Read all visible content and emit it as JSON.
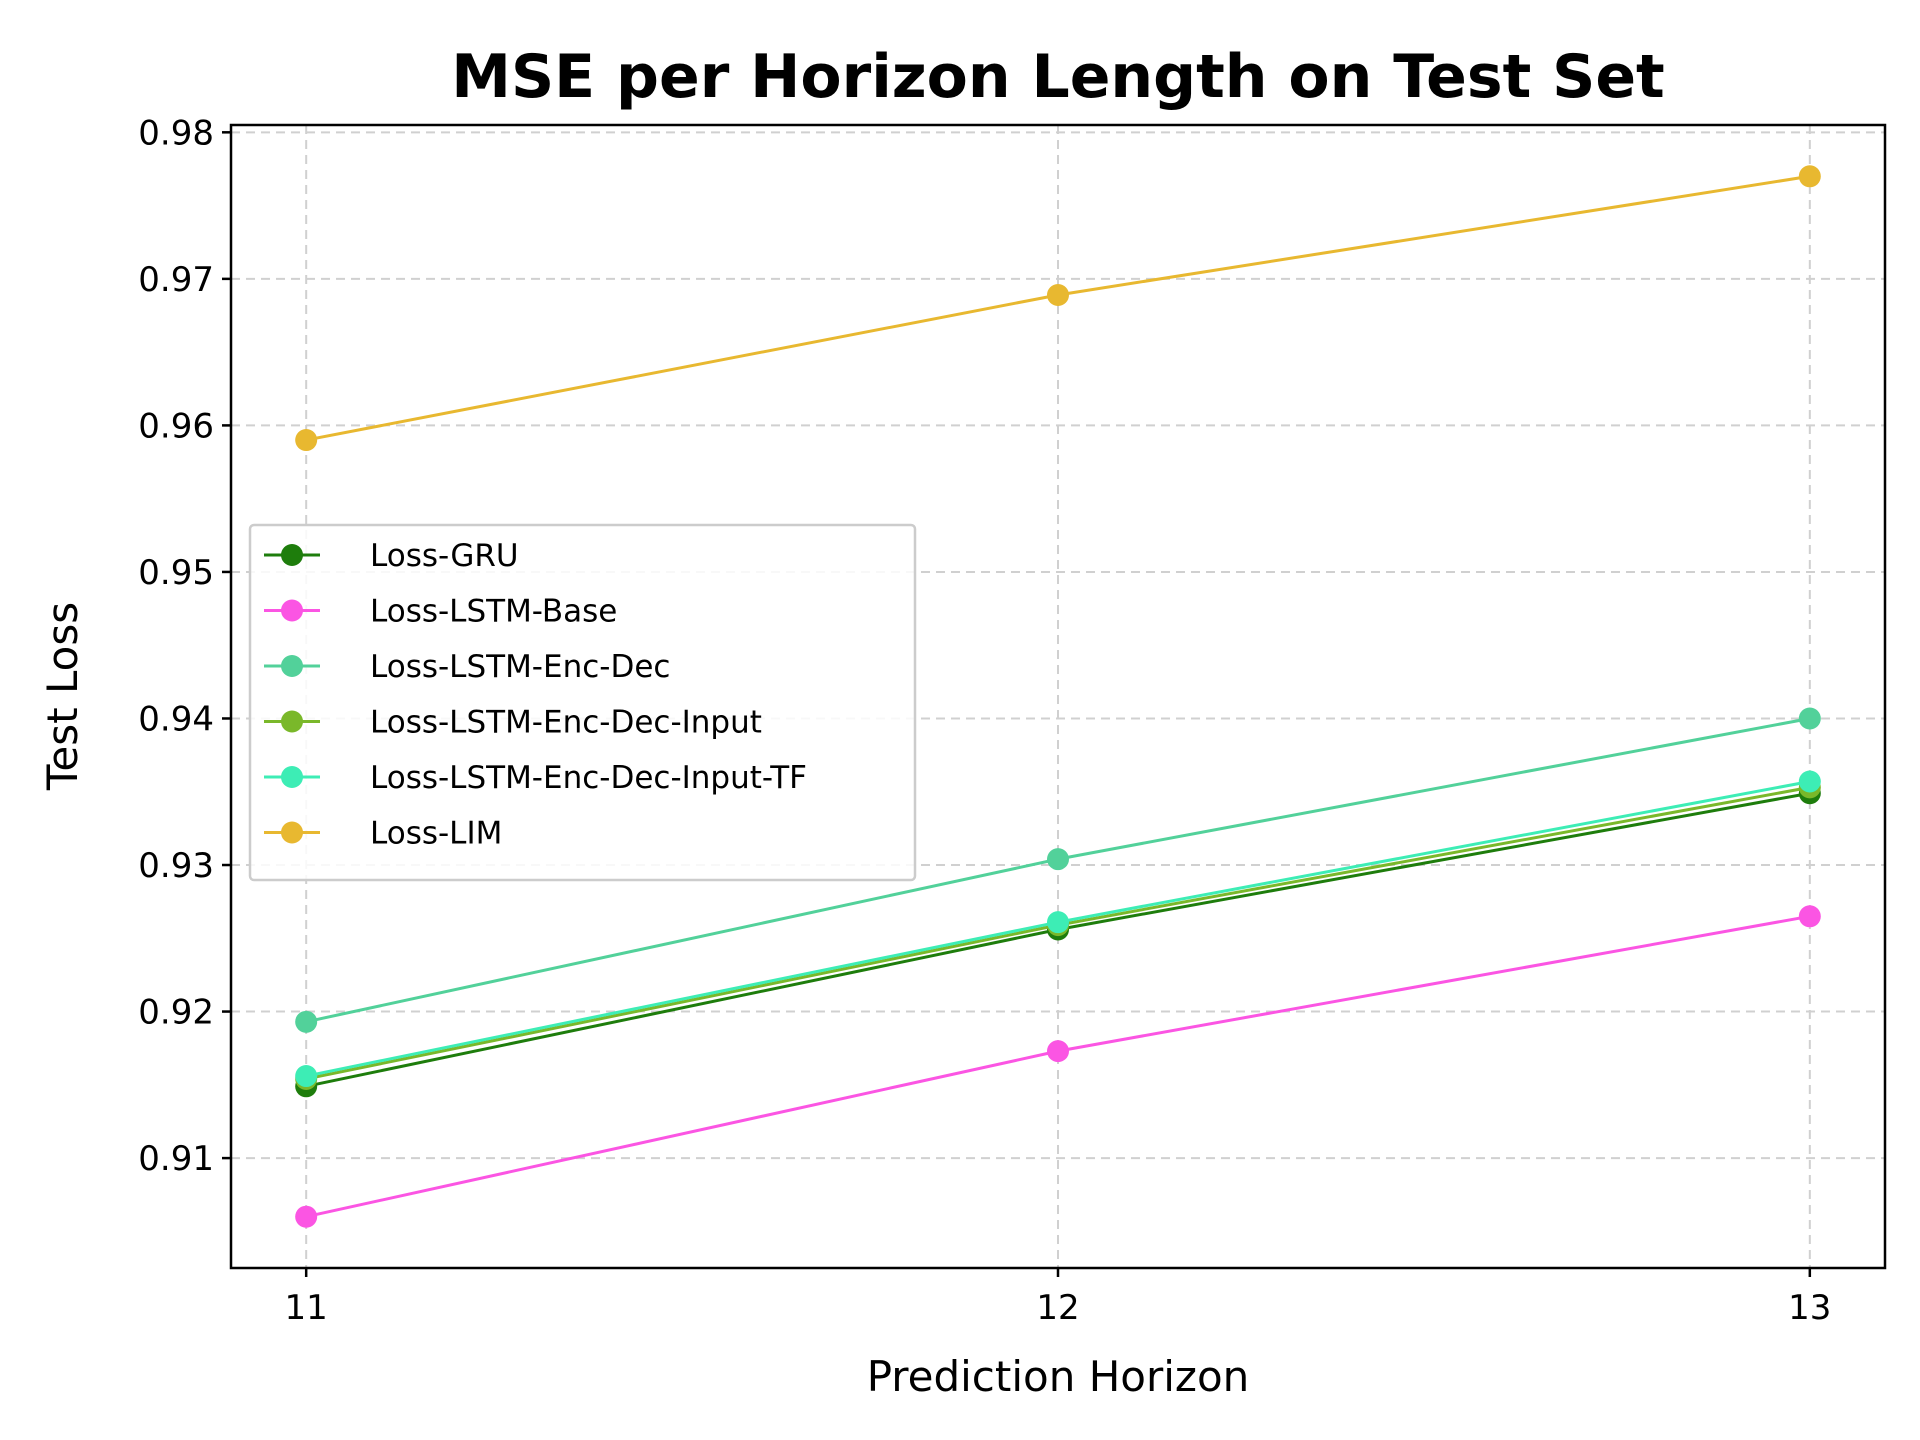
{
  "chart_data": {
    "type": "line",
    "title": "MSE per Horizon Length on Test Set",
    "xlabel": "Prediction Horizon",
    "ylabel": "Test Loss",
    "x": [
      11,
      12,
      13
    ],
    "x_tick_labels": [
      "11",
      "12",
      "13"
    ],
    "xlim": [
      10.9,
      13.1
    ],
    "ylim": [
      0.9025,
      0.9805
    ],
    "y_ticks": [
      0.91,
      0.92,
      0.93,
      0.94,
      0.95,
      0.96,
      0.97,
      0.98
    ],
    "y_tick_labels": [
      "0.91",
      "0.92",
      "0.93",
      "0.94",
      "0.95",
      "0.96",
      "0.97",
      "0.98"
    ],
    "grid": true,
    "legend_position": "center-left",
    "series": [
      {
        "name": "Loss-GRU",
        "color": "#1e7d0c",
        "values": [
          0.9149,
          0.9256,
          0.9349
        ]
      },
      {
        "name": "Loss-LSTM-Base",
        "color": "#fb55e3",
        "values": [
          0.906,
          0.9173,
          0.9265
        ]
      },
      {
        "name": "Loss-LSTM-Enc-Dec",
        "color": "#52d19a",
        "values": [
          0.9193,
          0.9304,
          0.94
        ]
      },
      {
        "name": "Loss-LSTM-Enc-Dec-Input",
        "color": "#7ab82a",
        "values": [
          0.9154,
          0.9259,
          0.9353
        ]
      },
      {
        "name": "Loss-LSTM-Enc-Dec-Input-TF",
        "color": "#3ded b5",
        "values": [
          0.9156,
          0.9261,
          0.9357
        ]
      },
      {
        "name": "Loss-LIM",
        "color": "#e8b830",
        "values": [
          0.959,
          0.9689,
          0.977
        ]
      }
    ]
  }
}
